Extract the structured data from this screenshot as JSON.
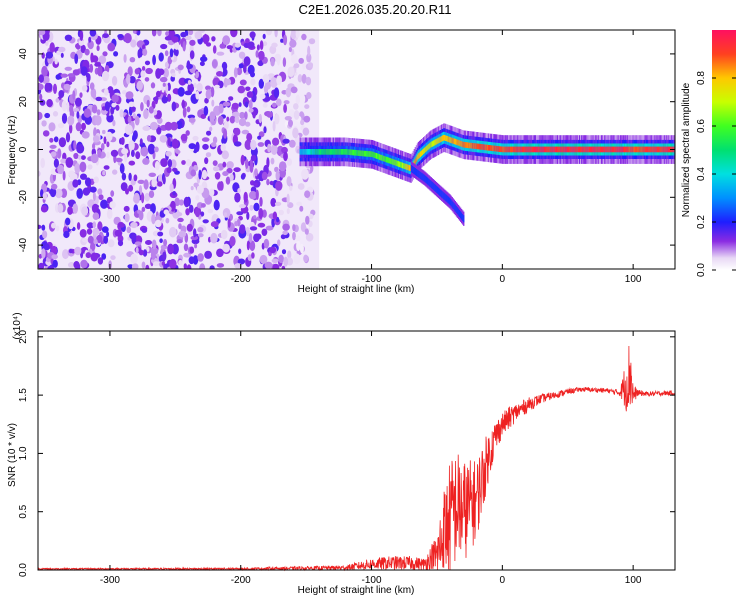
{
  "title": "C2E1.2026.035.20.20.R11",
  "chart_data": [
    {
      "type": "heatmap",
      "name": "spectrogram",
      "xlabel": "Height of straight line (km)",
      "ylabel": "Frequency (Hz)",
      "xlim": [
        -355,
        132
      ],
      "ylim": [
        -50,
        50
      ],
      "xticks": [
        "-300",
        "-200",
        "-100",
        "0",
        "100"
      ],
      "xtick_values": [
        -300,
        -200,
        -100,
        0,
        100
      ],
      "yticks": [
        "-40",
        "-20",
        "0",
        "20",
        "40"
      ],
      "ytick_values": [
        -40,
        -20,
        0,
        20,
        40
      ],
      "noise_region_x": [
        -355,
        -140
      ],
      "ridge": {
        "x": [
          -155,
          -140,
          -120,
          -100,
          -85,
          -75,
          -70,
          -65,
          -55,
          -45,
          -30,
          -15,
          0,
          20,
          50,
          90,
          100,
          132
        ],
        "y": [
          -1,
          -1,
          -1,
          -2,
          -5,
          -7,
          -8,
          -3,
          2,
          5,
          2,
          1,
          0,
          0,
          0,
          0,
          0,
          0
        ],
        "amplitude": [
          0.35,
          0.5,
          0.55,
          0.6,
          0.6,
          0.7,
          0.85,
          0.8,
          0.7,
          0.8,
          0.85,
          0.9,
          0.9,
          0.95,
          0.95,
          0.95,
          0.9,
          0.95
        ]
      },
      "tail": {
        "x": [
          -70,
          -60,
          -50,
          -40,
          -30
        ],
        "y": [
          -8,
          -12,
          -17,
          -22,
          -29
        ]
      },
      "colorbar": {
        "label": "Normalized spectral amplitude",
        "ticks": [
          "0.0",
          "0.2",
          "0.4",
          "0.6",
          "0.8"
        ],
        "tick_values": [
          0.0,
          0.2,
          0.4,
          0.6,
          0.8
        ],
        "range": [
          0,
          1
        ]
      }
    },
    {
      "type": "line",
      "name": "snr",
      "xlabel": "Height of straight line (km)",
      "ylabel": "SNR (10 * v/v)",
      "multiplier": "(x10⁴)",
      "xlim": [
        -355,
        132
      ],
      "ylim": [
        0,
        2.05
      ],
      "xticks": [
        "-300",
        "-200",
        "-100",
        "0",
        "100"
      ],
      "xtick_values": [
        -300,
        -200,
        -100,
        0,
        100
      ],
      "yticks": [
        "0.0",
        "0.5",
        "1.0",
        "1.5",
        "2.0"
      ],
      "ytick_values": [
        0,
        0.5,
        1.0,
        1.5,
        2.0
      ],
      "color": "#ee2222",
      "series": [
        {
          "name": "SNR",
          "x": [
            -355,
            -200,
            -120,
            -100,
            -85,
            -70,
            -60,
            -50,
            -45,
            -40,
            -35,
            -30,
            -25,
            -20,
            -15,
            -10,
            -5,
            0,
            5,
            10,
            20,
            30,
            40,
            50,
            60,
            80,
            90,
            95,
            98,
            100,
            103,
            110,
            132
          ],
          "y": [
            0.01,
            0.01,
            0.02,
            0.05,
            0.06,
            0.06,
            0.05,
            0.12,
            0.3,
            0.45,
            0.55,
            0.5,
            0.55,
            0.6,
            0.8,
            1.0,
            1.15,
            1.25,
            1.3,
            1.35,
            1.42,
            1.47,
            1.5,
            1.53,
            1.55,
            1.54,
            1.52,
            1.6,
            1.7,
            1.5,
            1.52,
            1.51,
            1.52
          ],
          "noise": [
            0.005,
            0.008,
            0.02,
            0.05,
            0.06,
            0.06,
            0.05,
            0.2,
            0.4,
            0.5,
            0.5,
            0.45,
            0.4,
            0.35,
            0.3,
            0.2,
            0.15,
            0.1,
            0.1,
            0.08,
            0.06,
            0.04,
            0.03,
            0.025,
            0.02,
            0.02,
            0.03,
            0.25,
            0.35,
            0.1,
            0.03,
            0.02,
            0.02
          ]
        }
      ]
    }
  ]
}
